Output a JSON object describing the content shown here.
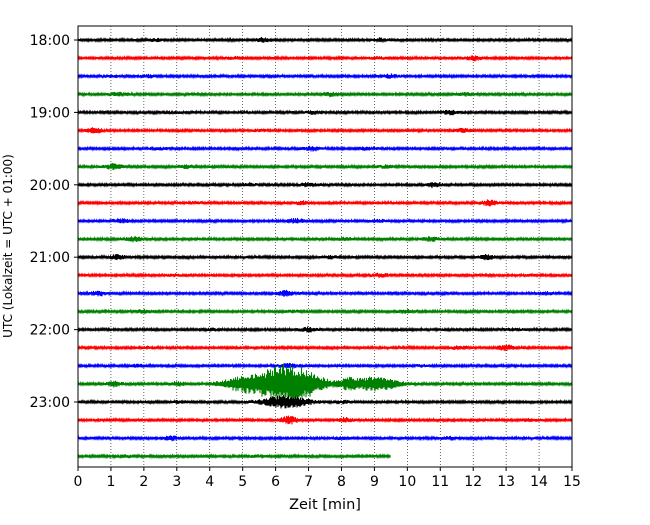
{
  "chart_data": {
    "type": "line",
    "xlabel": "Zeit  [min]",
    "ylabel": "UTC (Lokalzeit = UTC + 01:00)",
    "xlim": [
      0,
      15
    ],
    "x_ticks": [
      "0",
      "1",
      "2",
      "3",
      "4",
      "5",
      "6",
      "7",
      "8",
      "9",
      "10",
      "11",
      "12",
      "13",
      "14",
      "15"
    ],
    "y_ticks": [
      "18:00",
      "19:00",
      "20:00",
      "21:00",
      "22:00",
      "23:00"
    ],
    "grid": "vertical dotted",
    "trace_colors": [
      "#000000",
      "#ff0000",
      "#0000ff",
      "#008000"
    ],
    "rows": [
      {
        "time": "18:00",
        "color": "#000000",
        "end_min": 15,
        "events": [
          {
            "t": 5.6,
            "a": 0.45
          },
          {
            "t": 9.2,
            "a": 0.35
          },
          {
            "t": 2.4,
            "a": 0.25
          }
        ]
      },
      {
        "time": "18:15",
        "color": "#ff0000",
        "end_min": 15,
        "events": [
          {
            "t": 12.0,
            "a": 0.5
          },
          {
            "t": 9.1,
            "a": 0.25
          },
          {
            "t": 4.8,
            "a": 0.2
          }
        ]
      },
      {
        "time": "18:30",
        "color": "#0000ff",
        "end_min": 15,
        "events": [
          {
            "t": 9.5,
            "a": 0.4
          },
          {
            "t": 2.1,
            "a": 0.3
          },
          {
            "t": 1.0,
            "a": 0.2
          }
        ]
      },
      {
        "time": "18:45",
        "color": "#008000",
        "end_min": 15,
        "events": [
          {
            "t": 1.2,
            "a": 0.4
          },
          {
            "t": 7.7,
            "a": 0.4
          },
          {
            "t": 11.8,
            "a": 0.3
          }
        ]
      },
      {
        "time": "19:00",
        "color": "#000000",
        "end_min": 15,
        "events": [
          {
            "t": 11.3,
            "a": 0.45
          },
          {
            "t": 7.2,
            "a": 0.35
          },
          {
            "t": 3.0,
            "a": 0.2
          }
        ]
      },
      {
        "time": "19:15",
        "color": "#ff0000",
        "end_min": 15,
        "events": [
          {
            "t": 0.5,
            "a": 0.6
          },
          {
            "t": 11.7,
            "a": 0.4
          },
          {
            "t": 5.5,
            "a": 0.2
          }
        ]
      },
      {
        "time": "19:30",
        "color": "#0000ff",
        "end_min": 15,
        "events": [
          {
            "t": 7.1,
            "a": 0.45
          },
          {
            "t": 8.8,
            "a": 0.35
          },
          {
            "t": 2.5,
            "a": 0.2
          }
        ]
      },
      {
        "time": "19:45",
        "color": "#008000",
        "end_min": 15,
        "events": [
          {
            "t": 1.1,
            "a": 0.55
          },
          {
            "t": 3.3,
            "a": 0.35
          },
          {
            "t": 9.4,
            "a": 0.3
          }
        ]
      },
      {
        "time": "20:00",
        "color": "#000000",
        "end_min": 15,
        "events": [
          {
            "t": 10.8,
            "a": 0.55
          },
          {
            "t": 7.0,
            "a": 0.45
          },
          {
            "t": 5.2,
            "a": 0.3
          }
        ]
      },
      {
        "time": "20:15",
        "color": "#ff0000",
        "end_min": 15,
        "events": [
          {
            "t": 12.5,
            "a": 0.6
          },
          {
            "t": 6.8,
            "a": 0.3
          },
          {
            "t": 3.6,
            "a": 0.2
          }
        ]
      },
      {
        "time": "20:30",
        "color": "#0000ff",
        "end_min": 15,
        "events": [
          {
            "t": 6.6,
            "a": 0.5
          },
          {
            "t": 1.3,
            "a": 0.4
          },
          {
            "t": 9.1,
            "a": 0.25
          }
        ]
      },
      {
        "time": "20:45",
        "color": "#008000",
        "end_min": 15,
        "events": [
          {
            "t": 1.7,
            "a": 0.55
          },
          {
            "t": 10.7,
            "a": 0.45
          },
          {
            "t": 8.1,
            "a": 0.3
          }
        ]
      },
      {
        "time": "21:00",
        "color": "#000000",
        "end_min": 15,
        "events": [
          {
            "t": 1.2,
            "a": 0.5
          },
          {
            "t": 12.4,
            "a": 0.5
          },
          {
            "t": 7.7,
            "a": 0.3
          }
        ]
      },
      {
        "time": "21:15",
        "color": "#ff0000",
        "end_min": 15,
        "events": [
          {
            "t": 9.2,
            "a": 0.4
          },
          {
            "t": 3.0,
            "a": 0.25
          },
          {
            "t": 13.6,
            "a": 0.2
          }
        ]
      },
      {
        "time": "21:30",
        "color": "#0000ff",
        "end_min": 15,
        "events": [
          {
            "t": 0.6,
            "a": 0.5
          },
          {
            "t": 6.3,
            "a": 0.55
          },
          {
            "t": 14.2,
            "a": 0.3
          }
        ]
      },
      {
        "time": "21:45",
        "color": "#008000",
        "end_min": 15,
        "events": [
          {
            "t": 2.0,
            "a": 0.35
          },
          {
            "t": 10.0,
            "a": 0.4
          },
          {
            "t": 6.5,
            "a": 0.25
          }
        ]
      },
      {
        "time": "22:00",
        "color": "#000000",
        "end_min": 15,
        "events": [
          {
            "t": 7.0,
            "a": 0.5
          },
          {
            "t": 13.2,
            "a": 0.25
          },
          {
            "t": 4.1,
            "a": 0.2
          }
        ]
      },
      {
        "time": "22:15",
        "color": "#ff0000",
        "end_min": 15,
        "events": [
          {
            "t": 13.0,
            "a": 0.55
          },
          {
            "t": 11.6,
            "a": 0.35
          },
          {
            "t": 2.1,
            "a": 0.2
          }
        ]
      },
      {
        "time": "22:30",
        "color": "#0000ff",
        "end_min": 15,
        "events": [
          {
            "t": 6.4,
            "a": 0.5
          },
          {
            "t": 1.8,
            "a": 0.25
          },
          {
            "t": 10.5,
            "a": 0.2
          }
        ]
      },
      {
        "time": "22:45",
        "color": "#008000",
        "end_min": 15,
        "events": [
          {
            "t": 1.1,
            "a": 0.55
          },
          {
            "t": 3.0,
            "a": 0.45
          },
          {
            "t": 5.1,
            "a": 1.8
          },
          {
            "t": 6.2,
            "a": 3.5
          },
          {
            "t": 6.9,
            "a": 2.2
          },
          {
            "t": 8.2,
            "a": 1.0
          },
          {
            "t": 9.0,
            "a": 1.6
          }
        ]
      },
      {
        "time": "23:00",
        "color": "#000000",
        "end_min": 15,
        "events": [
          {
            "t": 6.3,
            "a": 1.4
          },
          {
            "t": 8.0,
            "a": 0.3
          },
          {
            "t": 3.0,
            "a": 0.2
          }
        ]
      },
      {
        "time": "23:15",
        "color": "#ff0000",
        "end_min": 15,
        "events": [
          {
            "t": 6.4,
            "a": 0.9
          },
          {
            "t": 8.1,
            "a": 0.45
          },
          {
            "t": 13.7,
            "a": 0.3
          }
        ]
      },
      {
        "time": "23:30",
        "color": "#0000ff",
        "end_min": 15,
        "events": [
          {
            "t": 2.8,
            "a": 0.45
          },
          {
            "t": 8.0,
            "a": 0.3
          },
          {
            "t": 11.3,
            "a": 0.3
          }
        ]
      },
      {
        "time": "23:45",
        "color": "#008000",
        "end_min": 9.5,
        "events": [
          {
            "t": 1.5,
            "a": 0.25
          },
          {
            "t": 5.5,
            "a": 0.2
          }
        ]
      }
    ]
  }
}
